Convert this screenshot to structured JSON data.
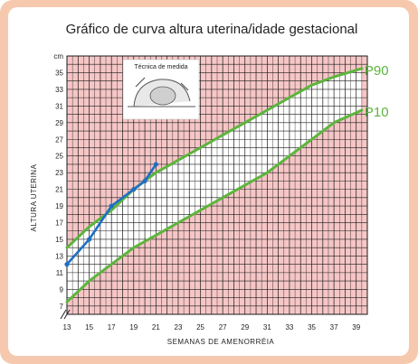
{
  "chart_data": {
    "type": "line",
    "title": "Gráfico de curva altura uterina/idade gestacional",
    "xlabel": "SEMANAS DE AMENORRÉIA",
    "ylabel": "ALTURA UTERINA",
    "y_unit": "cm",
    "xlim": [
      13,
      40
    ],
    "ylim": [
      6,
      37
    ],
    "x_ticks": [
      "13",
      "15",
      "17",
      "19",
      "21",
      "23",
      "25",
      "27",
      "29",
      "31",
      "33",
      "35",
      "37",
      "39"
    ],
    "y_ticks": [
      "7",
      "9",
      "11",
      "13",
      "15",
      "17",
      "19",
      "21",
      "23",
      "25",
      "27",
      "29",
      "31",
      "33",
      "35",
      "cm"
    ],
    "grid": true,
    "inset_caption": "Técnica de medida",
    "series": [
      {
        "name": "P90",
        "color": "#5cb53c",
        "x": [
          13,
          15,
          17,
          19,
          21,
          23,
          25,
          27,
          29,
          31,
          33,
          35,
          37,
          39.5
        ],
        "y": [
          14,
          16.5,
          18.5,
          21,
          23,
          24.5,
          26,
          27.5,
          29,
          30.5,
          32,
          33.5,
          34.5,
          35.5
        ]
      },
      {
        "name": "P10",
        "color": "#5cb53c",
        "x": [
          13,
          15,
          17,
          19,
          21,
          23,
          25,
          27,
          29,
          31,
          33,
          35,
          37,
          39.5
        ],
        "y": [
          7.5,
          10,
          12,
          14,
          15.5,
          17,
          18.5,
          20,
          21.5,
          23,
          25,
          27,
          29,
          30.5
        ]
      },
      {
        "name": "",
        "color": "#1e6fc4",
        "x": [
          13,
          15,
          17,
          19,
          20,
          21
        ],
        "y": [
          12,
          15,
          19,
          21,
          22,
          24
        ]
      }
    ]
  }
}
